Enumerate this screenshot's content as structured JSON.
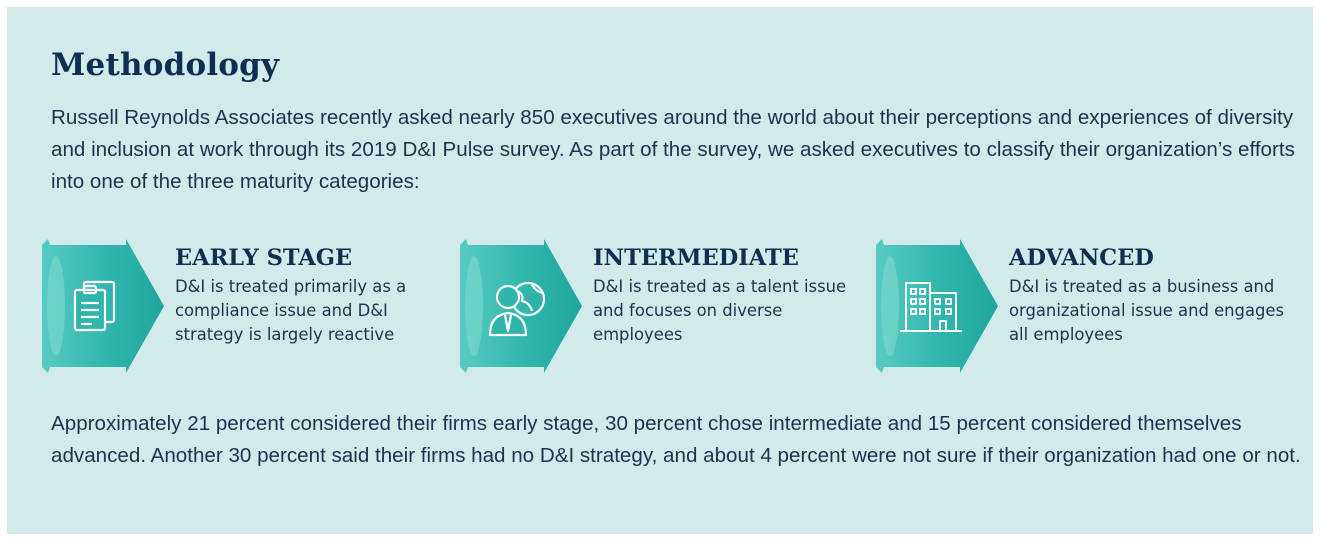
{
  "title": "Methodology",
  "intro": "Russell Reynolds Associates recently asked nearly 850 executives around the world about their perceptions and experiences of diversity and inclusion at work through its 2019 D&I Pulse survey. As part of the survey, we asked executives to classify their organization’s efforts into one of the three maturity categories:",
  "stages": [
    {
      "title": "EARLY STAGE",
      "description": "D&I is treated primarily as a compliance issue and D&I strategy is largely reactive",
      "icon": "clipboard-documents-icon"
    },
    {
      "title": "INTERMEDIATE",
      "description": "D&I is treated as a talent issue and focuses on diverse employees",
      "icon": "person-globe-icon"
    },
    {
      "title": "ADVANCED",
      "description": "D&I is treated as a business and organizational issue and engages all employees",
      "icon": "office-buildings-icon"
    }
  ],
  "outro": "Approximately 21 percent considered their firms early stage, 30 percent chose intermediate and 15 percent considered themselves advanced. Another 30 percent said their firms had no D&I strategy, and about 4 percent were not sure if their organization had one or not.",
  "colors": {
    "background": "#d2ebea",
    "teal": "#2fb5ac",
    "navy": "#0e2f52",
    "text": "#1a3350"
  }
}
